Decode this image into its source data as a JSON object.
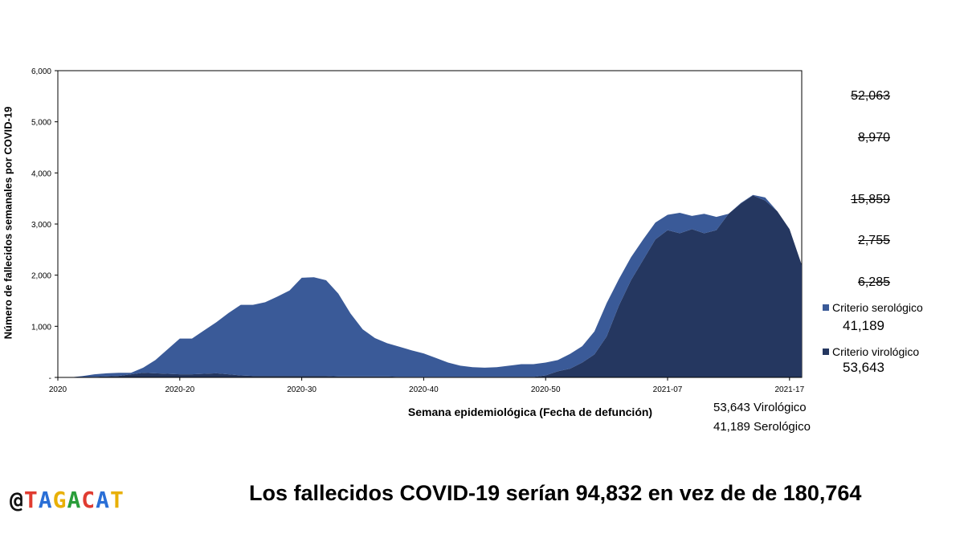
{
  "chart_data": {
    "type": "area",
    "stacked": true,
    "xlabel": "Semana epidemiológica (Fecha de defunción)",
    "ylabel": "Número de fallecidos semanales por COVID-19",
    "ylim": [
      0,
      6000
    ],
    "yticks": [
      "-",
      "1,000",
      "2,000",
      "3,000",
      "4,000",
      "5,000",
      "6,000"
    ],
    "xticks": [
      {
        "week": 0,
        "label": "2020"
      },
      {
        "week": 10,
        "label": "2020-20"
      },
      {
        "week": 20,
        "label": "2020-30"
      },
      {
        "week": 30,
        "label": "2020-40"
      },
      {
        "week": 40,
        "label": "2020-50"
      },
      {
        "week": 50,
        "label": "2021-07"
      },
      {
        "week": 60,
        "label": "2021-17"
      }
    ],
    "legend_position": "right",
    "series": [
      {
        "name": "Criterio virológico",
        "color": "#253760",
        "values": [
          0,
          0,
          5,
          10,
          20,
          30,
          60,
          90,
          80,
          70,
          60,
          60,
          70,
          80,
          60,
          40,
          30,
          30,
          30,
          30,
          30,
          30,
          30,
          20,
          20,
          20,
          20,
          20,
          10,
          10,
          10,
          10,
          10,
          10,
          10,
          10,
          10,
          10,
          10,
          10,
          40,
          120,
          170,
          290,
          450,
          800,
          1400,
          1900,
          2300,
          2700,
          2880,
          2820,
          2900,
          2820,
          2880,
          3200,
          3400,
          3560,
          3460,
          3250,
          2900,
          2200
        ]
      },
      {
        "name": "Criterio serológico",
        "color": "#3a5a98",
        "values": [
          0,
          0,
          20,
          50,
          60,
          60,
          30,
          100,
          260,
          480,
          700,
          700,
          850,
          1000,
          1200,
          1380,
          1390,
          1440,
          1550,
          1670,
          1920,
          1930,
          1870,
          1620,
          1230,
          920,
          750,
          650,
          590,
          520,
          460,
          370,
          280,
          220,
          190,
          180,
          190,
          220,
          250,
          250,
          250,
          220,
          290,
          320,
          450,
          650,
          520,
          450,
          400,
          330,
          300,
          400,
          260,
          380,
          260,
          0,
          10,
          10,
          60,
          0,
          0,
          0
        ]
      }
    ],
    "annotations": [
      "52,063",
      "8,970",
      "15,859",
      "2,755",
      "6,285"
    ],
    "legend_totals": {
      "serologico": "41,189",
      "virologico": "53,643"
    },
    "summary": [
      "53,643 Virológico",
      "41,189 Serológico"
    ]
  },
  "footer": {
    "handle": "@TAGACAT",
    "headline": "Los fallecidos COVID-19 serían 94,832 en vez de de 180,764"
  }
}
